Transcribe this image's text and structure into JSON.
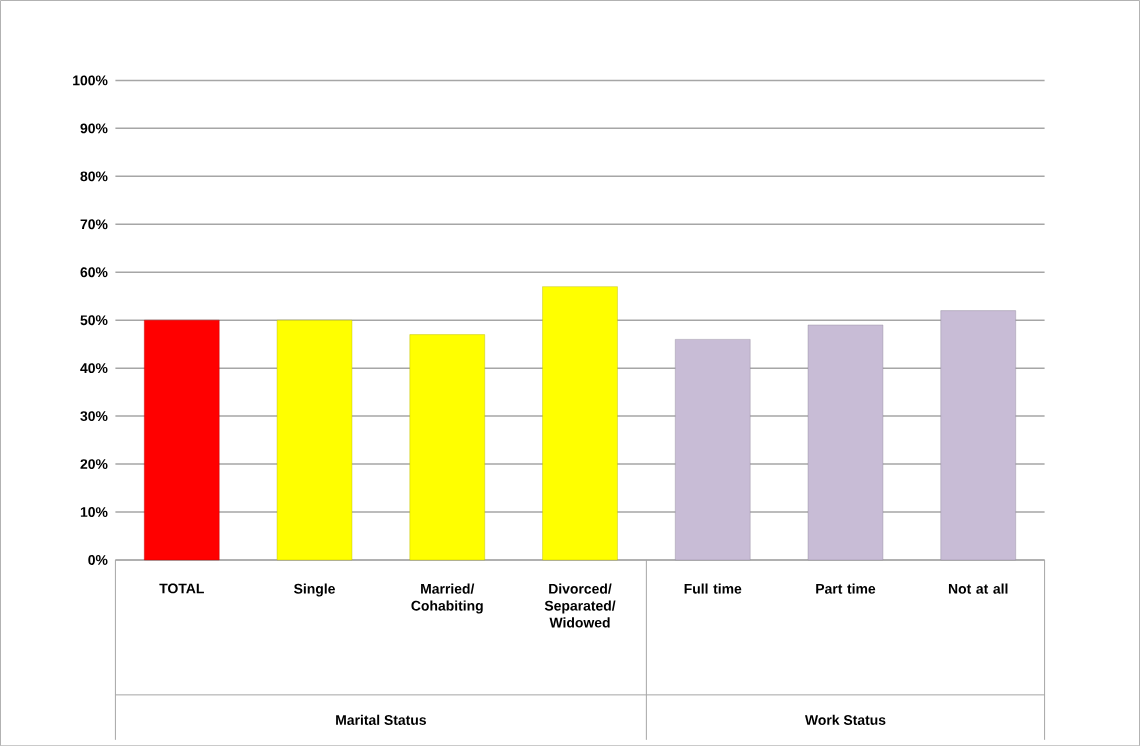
{
  "chart_data": {
    "type": "bar",
    "categories": [
      "TOTAL",
      "Single",
      "Married/ Cohabiting",
      "Divorced/ Separated/ Widowed",
      "Full time",
      "Part time",
      "Not at all"
    ],
    "values": [
      50,
      50,
      47,
      57,
      46,
      49,
      52
    ],
    "colors": [
      "#ff0000",
      "#ffff00",
      "#ffff00",
      "#ffff00",
      "#c8bcd6",
      "#c8bcd6",
      "#c8bcd6"
    ],
    "ylim": [
      0,
      100
    ],
    "yticks": [
      {
        "value": 0,
        "label": "0%"
      },
      {
        "value": 10,
        "label": "10%"
      },
      {
        "value": 20,
        "label": "20%"
      },
      {
        "value": 30,
        "label": "30%"
      },
      {
        "value": 40,
        "label": "40%"
      },
      {
        "value": 50,
        "label": "50%"
      },
      {
        "value": 60,
        "label": "60%"
      },
      {
        "value": 70,
        "label": "70%"
      },
      {
        "value": 80,
        "label": "80%"
      },
      {
        "value": 90,
        "label": "90%"
      },
      {
        "value": 100,
        "label": "100%"
      }
    ],
    "grid": "y",
    "annotations": [
      "Marital Status",
      "Work Status"
    ]
  }
}
